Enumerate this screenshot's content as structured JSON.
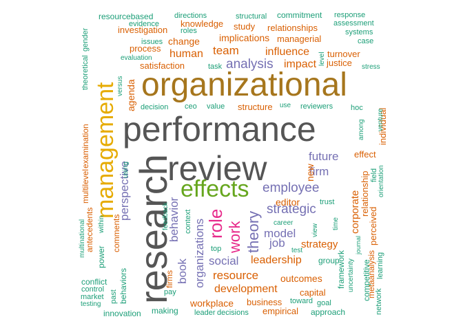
{
  "colors": {
    "teal": "#1b9e77",
    "orange": "#d95f02",
    "purple": "#7570b3",
    "pink": "#e7298a",
    "green": "#66a61e",
    "gold": "#e6ab02",
    "brown": "#a6761d",
    "gray": "#555555"
  },
  "words": [
    {
      "text": "performance",
      "color": "gray"
    },
    {
      "text": "research",
      "color": "gray"
    },
    {
      "text": "review",
      "color": "gray"
    },
    {
      "text": "organizational",
      "color": "brown"
    },
    {
      "text": "management",
      "color": "gold"
    },
    {
      "text": "effects",
      "color": "green"
    },
    {
      "text": "role",
      "color": "pink"
    },
    {
      "text": "work",
      "color": "pink"
    },
    {
      "text": "theory",
      "color": "purple"
    },
    {
      "text": "employee",
      "color": "purple"
    },
    {
      "text": "strategic",
      "color": "purple"
    },
    {
      "text": "future",
      "color": "purple"
    },
    {
      "text": "firm",
      "color": "purple"
    },
    {
      "text": "model",
      "color": "purple"
    },
    {
      "text": "analysis",
      "color": "purple"
    },
    {
      "text": "behavior",
      "color": "purple"
    },
    {
      "text": "perspective",
      "color": "purple"
    },
    {
      "text": "organizations",
      "color": "purple"
    },
    {
      "text": "book",
      "color": "purple"
    },
    {
      "text": "social",
      "color": "purple"
    },
    {
      "text": "job",
      "color": "purple"
    },
    {
      "text": "team",
      "color": "orange"
    },
    {
      "text": "human",
      "color": "orange"
    },
    {
      "text": "influence",
      "color": "orange"
    },
    {
      "text": "impact",
      "color": "orange"
    },
    {
      "text": "implications",
      "color": "orange"
    },
    {
      "text": "change",
      "color": "orange"
    },
    {
      "text": "knowledge",
      "color": "orange"
    },
    {
      "text": "study",
      "color": "orange"
    },
    {
      "text": "relationships",
      "color": "orange"
    },
    {
      "text": "managerial",
      "color": "orange"
    },
    {
      "text": "investigation",
      "color": "orange"
    },
    {
      "text": "process",
      "color": "orange"
    },
    {
      "text": "satisfaction",
      "color": "orange"
    },
    {
      "text": "agenda",
      "color": "orange"
    },
    {
      "text": "structure",
      "color": "orange"
    },
    {
      "text": "leadership",
      "color": "orange"
    },
    {
      "text": "resource",
      "color": "orange"
    },
    {
      "text": "development",
      "color": "orange"
    },
    {
      "text": "strategy",
      "color": "orange"
    },
    {
      "text": "outcomes",
      "color": "orange"
    },
    {
      "text": "editor",
      "color": "orange"
    },
    {
      "text": "corporate",
      "color": "orange"
    },
    {
      "text": "relationship",
      "color": "orange"
    },
    {
      "text": "effect",
      "color": "orange"
    },
    {
      "text": "new",
      "color": "orange"
    },
    {
      "text": "individual",
      "color": "orange"
    },
    {
      "text": "perceived",
      "color": "orange"
    },
    {
      "text": "capital",
      "color": "orange"
    },
    {
      "text": "workplace",
      "color": "orange"
    },
    {
      "text": "business",
      "color": "orange"
    },
    {
      "text": "empirical",
      "color": "orange"
    },
    {
      "text": "examination",
      "color": "orange"
    },
    {
      "text": "multilevel",
      "color": "orange"
    },
    {
      "text": "antecedents",
      "color": "orange"
    },
    {
      "text": "comments",
      "color": "orange"
    },
    {
      "text": "firms",
      "color": "orange"
    },
    {
      "text": "metaanalysis",
      "color": "orange"
    },
    {
      "text": "turnover",
      "color": "orange"
    },
    {
      "text": "justice",
      "color": "orange"
    },
    {
      "text": "commitment",
      "color": "teal"
    },
    {
      "text": "resourcebased",
      "color": "teal"
    },
    {
      "text": "directions",
      "color": "teal"
    },
    {
      "text": "structural",
      "color": "teal"
    },
    {
      "text": "response",
      "color": "teal"
    },
    {
      "text": "assessment",
      "color": "teal"
    },
    {
      "text": "systems",
      "color": "teal"
    },
    {
      "text": "case",
      "color": "teal"
    },
    {
      "text": "evidence",
      "color": "teal"
    },
    {
      "text": "roles",
      "color": "teal"
    },
    {
      "text": "issues",
      "color": "teal"
    },
    {
      "text": "evaluation",
      "color": "teal"
    },
    {
      "text": "task",
      "color": "teal"
    },
    {
      "text": "level",
      "color": "teal"
    },
    {
      "text": "stress",
      "color": "teal"
    },
    {
      "text": "gender",
      "color": "teal"
    },
    {
      "text": "theoretical",
      "color": "teal"
    },
    {
      "text": "versus",
      "color": "teal"
    },
    {
      "text": "decision",
      "color": "teal"
    },
    {
      "text": "ceo",
      "color": "teal"
    },
    {
      "text": "value",
      "color": "teal"
    },
    {
      "text": "use",
      "color": "teal"
    },
    {
      "text": "reviewers",
      "color": "teal"
    },
    {
      "text": "hoc",
      "color": "teal"
    },
    {
      "text": "among",
      "color": "teal"
    },
    {
      "text": "venture",
      "color": "teal"
    },
    {
      "text": "context",
      "color": "teal"
    },
    {
      "text": "using",
      "color": "teal"
    },
    {
      "text": "field",
      "color": "teal"
    },
    {
      "text": "orientation",
      "color": "teal"
    },
    {
      "text": "trust",
      "color": "teal"
    },
    {
      "text": "time",
      "color": "teal"
    },
    {
      "text": "career",
      "color": "teal"
    },
    {
      "text": "view",
      "color": "teal"
    },
    {
      "text": "within",
      "color": "teal"
    },
    {
      "text": "feedback",
      "color": "teal"
    },
    {
      "text": "multinational",
      "color": "teal"
    },
    {
      "text": "top",
      "color": "teal"
    },
    {
      "text": "test",
      "color": "teal"
    },
    {
      "text": "group",
      "color": "teal"
    },
    {
      "text": "journal",
      "color": "teal"
    },
    {
      "text": "power",
      "color": "teal"
    },
    {
      "text": "framework",
      "color": "teal"
    },
    {
      "text": "uncertainty",
      "color": "teal"
    },
    {
      "text": "competitive",
      "color": "teal"
    },
    {
      "text": "learning",
      "color": "teal"
    },
    {
      "text": "conflict",
      "color": "teal"
    },
    {
      "text": "control",
      "color": "teal"
    },
    {
      "text": "market",
      "color": "teal"
    },
    {
      "text": "testing",
      "color": "teal"
    },
    {
      "text": "past",
      "color": "teal"
    },
    {
      "text": "behaviors",
      "color": "teal"
    },
    {
      "text": "pay",
      "color": "teal"
    },
    {
      "text": "toward",
      "color": "teal"
    },
    {
      "text": "goal",
      "color": "teal"
    },
    {
      "text": "network",
      "color": "teal"
    },
    {
      "text": "innovation",
      "color": "teal"
    },
    {
      "text": "making",
      "color": "teal"
    },
    {
      "text": "leader",
      "color": "teal"
    },
    {
      "text": "decisions",
      "color": "teal"
    },
    {
      "text": "approach",
      "color": "teal"
    }
  ]
}
